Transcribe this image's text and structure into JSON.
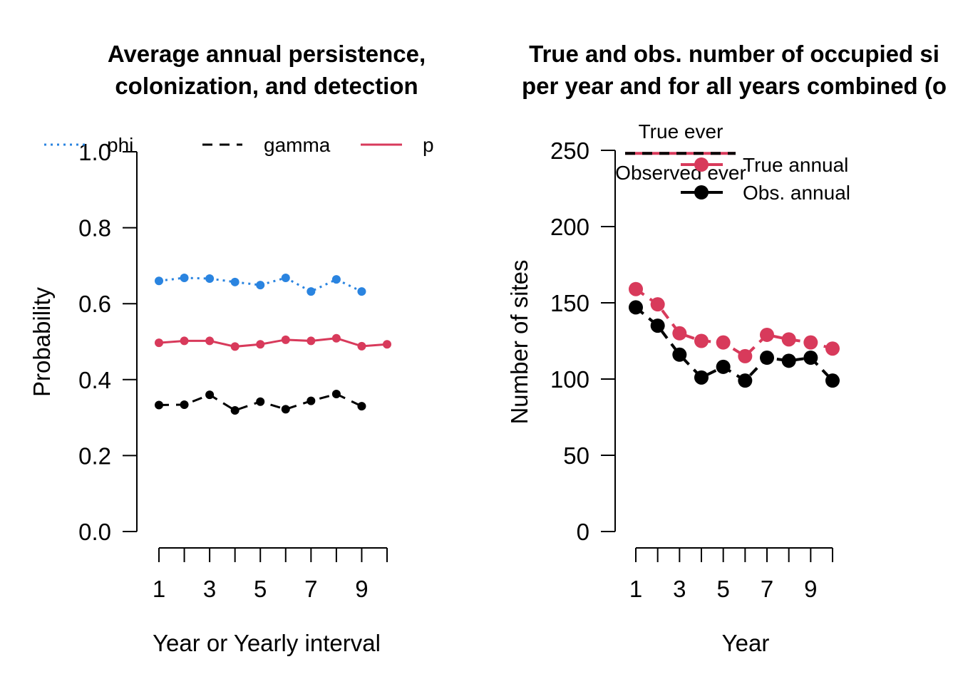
{
  "chart_data": [
    {
      "type": "line",
      "title_line1": "Average annual persistence,",
      "title_line2": "colonization, and detection",
      "xlabel": "Year or Yearly interval",
      "ylabel": "Probability",
      "ylim": [
        0,
        1
      ],
      "yticks": [
        "0.0",
        "0.2",
        "0.4",
        "0.6",
        "0.8",
        "1.0"
      ],
      "xticks": [
        "1",
        "3",
        "5",
        "7",
        "9"
      ],
      "legend_position": "top",
      "series": [
        {
          "name": "phi",
          "color": "#2a84e0",
          "style": "dotted",
          "x": [
            1,
            2,
            3,
            4,
            5,
            6,
            7,
            8,
            9
          ],
          "values": [
            0.66,
            0.668,
            0.666,
            0.657,
            0.649,
            0.668,
            0.632,
            0.664,
            0.632
          ]
        },
        {
          "name": "gamma",
          "color": "#000000",
          "style": "dashed",
          "x": [
            1,
            2,
            3,
            4,
            5,
            6,
            7,
            8,
            9
          ],
          "values": [
            0.333,
            0.334,
            0.36,
            0.319,
            0.342,
            0.322,
            0.344,
            0.362,
            0.33
          ]
        },
        {
          "name": "p",
          "color": "#d83a5b",
          "style": "solid",
          "x": [
            1,
            2,
            3,
            4,
            5,
            6,
            7,
            8,
            9,
            10
          ],
          "values": [
            0.497,
            0.502,
            0.502,
            0.487,
            0.493,
            0.505,
            0.502,
            0.509,
            0.488,
            0.493
          ]
        }
      ]
    },
    {
      "type": "line",
      "title_line1": "True and obs. number of occupied si",
      "title_line2": "per year and for all years combined (o",
      "xlabel": "Year",
      "ylabel": "Number of sites",
      "ylim": [
        0,
        250
      ],
      "yticks": [
        "0",
        "50",
        "100",
        "150",
        "200",
        "250"
      ],
      "xticks": [
        "1",
        "3",
        "5",
        "7",
        "9"
      ],
      "legend_position": "top",
      "reference_lines": [
        {
          "name": "True ever",
          "value": 248,
          "color": "#d83a5b",
          "style": "solid"
        },
        {
          "name": "Observed ever",
          "value": 248,
          "color": "#000000",
          "style": "dashed"
        }
      ],
      "series": [
        {
          "name": "True annual",
          "color": "#d83a5b",
          "style": "dashed",
          "x": [
            1,
            2,
            3,
            4,
            5,
            6,
            7,
            8,
            9,
            10
          ],
          "values": [
            159,
            149,
            130,
            125,
            124,
            115,
            129,
            126,
            124,
            120
          ]
        },
        {
          "name": "Obs. annual",
          "color": "#000000",
          "style": "dashed",
          "x": [
            1,
            2,
            3,
            4,
            5,
            6,
            7,
            8,
            9,
            10
          ],
          "values": [
            147,
            135,
            116,
            101,
            108,
            99,
            114,
            112,
            114,
            99
          ]
        }
      ]
    }
  ]
}
